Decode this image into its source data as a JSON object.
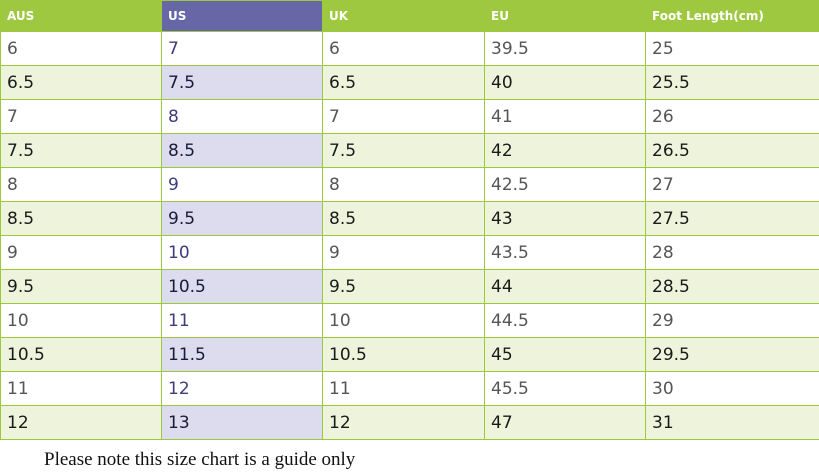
{
  "table": {
    "headers": [
      "AUS",
      "US",
      "UK",
      "EU",
      "Foot Length(cm)"
    ],
    "rows": [
      [
        "6",
        "7",
        "6",
        "39.5",
        "25"
      ],
      [
        "6.5",
        "7.5",
        "6.5",
        "40",
        "25.5"
      ],
      [
        "7",
        "8",
        "7",
        "41",
        "26"
      ],
      [
        "7.5",
        "8.5",
        "7.5",
        "42",
        "26.5"
      ],
      [
        "8",
        "9",
        "8",
        "42.5",
        "27"
      ],
      [
        "8.5",
        "9.5",
        "8.5",
        "43",
        "27.5"
      ],
      [
        "9",
        "10",
        "9",
        "43.5",
        "28"
      ],
      [
        "9.5",
        "10.5",
        "9.5",
        "44",
        "28.5"
      ],
      [
        "10",
        "11",
        "10",
        "44.5",
        "29"
      ],
      [
        "10.5",
        "11.5",
        "10.5",
        "45",
        "29.5"
      ],
      [
        "11",
        "12",
        "11",
        "45.5",
        "30"
      ],
      [
        "12",
        "13",
        "12",
        "47",
        "31"
      ]
    ]
  },
  "note": "Please note this size chart is a guide only"
}
